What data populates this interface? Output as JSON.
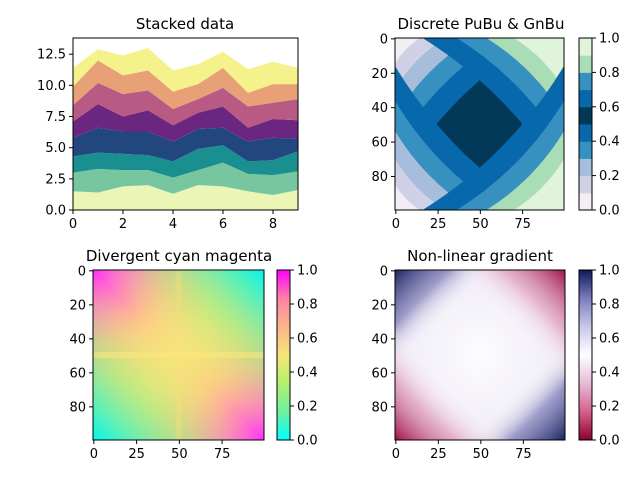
{
  "chart_data": [
    {
      "type": "area",
      "title": "Stacked data",
      "xlabel": "",
      "ylabel": "",
      "xlim": [
        0,
        9
      ],
      "ylim": [
        0,
        13.8
      ],
      "x": [
        0,
        1,
        2,
        3,
        4,
        5,
        6,
        7,
        8,
        9
      ],
      "xticks": [
        "0",
        "2",
        "4",
        "6",
        "8"
      ],
      "yticks": [
        "0.0",
        "2.5",
        "5.0",
        "7.5",
        "10.0",
        "12.5"
      ],
      "colors": [
        "#ebf5b5",
        "#77c6a0",
        "#19908f",
        "#22477f",
        "#6b2680",
        "#b95a85",
        "#e8a177",
        "#f5f28c"
      ],
      "series": [
        {
          "values": [
            1.5,
            1.4,
            1.9,
            2.0,
            1.3,
            2.0,
            1.9,
            1.5,
            1.2,
            1.6
          ]
        },
        {
          "values": [
            1.5,
            1.9,
            1.3,
            1.2,
            1.3,
            1.2,
            1.9,
            1.4,
            1.6,
            1.5
          ]
        },
        {
          "values": [
            1.3,
            1.3,
            1.3,
            1.2,
            1.3,
            1.7,
            1.4,
            1.0,
            1.2,
            1.6
          ]
        },
        {
          "values": [
            1.5,
            2.0,
            1.8,
            1.9,
            1.6,
            1.6,
            1.4,
            1.6,
            1.8,
            1.0
          ]
        },
        {
          "values": [
            1.3,
            1.9,
            1.2,
            1.7,
            1.3,
            1.3,
            1.7,
            1.1,
            1.5,
            1.5
          ]
        },
        {
          "values": [
            1.3,
            1.7,
            1.8,
            1.6,
            1.3,
            1.1,
            1.5,
            1.7,
            1.3,
            1.7
          ]
        },
        {
          "values": [
            1.5,
            1.8,
            1.5,
            1.6,
            1.4,
            1.2,
            1.6,
            1.1,
            1.5,
            1.2
          ]
        },
        {
          "values": [
            1.5,
            0.9,
            1.6,
            1.8,
            1.7,
            1.6,
            1.3,
            1.9,
            1.8,
            1.3
          ]
        }
      ]
    },
    {
      "type": "heatmap",
      "title": "Discrete PuBu & GnBu",
      "pattern": "discrete",
      "levels": 10,
      "xticks": [
        "0",
        "25",
        "50",
        "75"
      ],
      "yticks": [
        "0",
        "20",
        "40",
        "60",
        "80"
      ],
      "colorbar": {
        "ticks": [
          "0.0",
          "0.2",
          "0.4",
          "0.6",
          "0.8",
          "1.0"
        ],
        "colors": [
          "#f3eef6",
          "#d0d1e6",
          "#a6bddb",
          "#3690c0",
          "#0868ac",
          "#023858",
          "#0868ac",
          "#3690c0",
          "#a8ddb5",
          "#e0f3db"
        ]
      }
    },
    {
      "type": "heatmap",
      "title": "Divergent cyan magenta",
      "pattern": "continuous",
      "xticks": [
        "0",
        "25",
        "50",
        "75"
      ],
      "yticks": [
        "0",
        "20",
        "40",
        "60",
        "80"
      ],
      "colorbar": {
        "ticks": [
          "0.0",
          "0.2",
          "0.4",
          "0.6",
          "0.8",
          "1.0"
        ],
        "colors": [
          "#00ffff",
          "#6ef0a0",
          "#b4f06e",
          "#f5e678",
          "#fab48c",
          "#ff82a5",
          "#ff00ff"
        ]
      }
    },
    {
      "type": "heatmap",
      "title": "Non-linear gradient",
      "pattern": "diagonal",
      "xticks": [
        "0",
        "25",
        "50",
        "75"
      ],
      "yticks": [
        "0",
        "20",
        "40",
        "60",
        "80"
      ],
      "colorbar": {
        "ticks": [
          "0.0",
          "0.2",
          "0.4",
          "0.6",
          "0.8",
          "1.0"
        ],
        "colors": [
          "#8b0030",
          "#d6608a",
          "#e6bcd8",
          "#ffffff",
          "#c8c8ea",
          "#7c7cc0",
          "#0c1a5a"
        ]
      }
    }
  ]
}
